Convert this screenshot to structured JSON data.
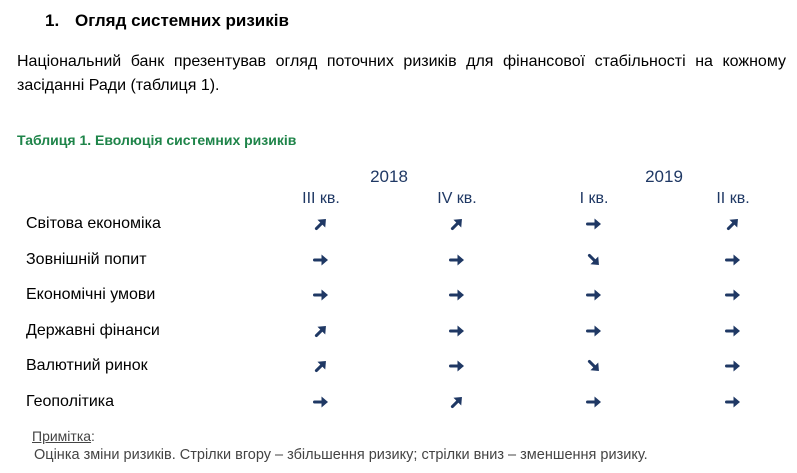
{
  "section": {
    "number": "1.",
    "title": "Огляд системних ризиків"
  },
  "paragraph": "Національний банк презентував огляд поточних ризиків для фінансової стабільності на кожному засіданні Ради (таблиця 1).",
  "table": {
    "caption": "Таблиця 1. Еволюція системних ризиків",
    "years": [
      "2018",
      "2019"
    ],
    "quarters": [
      "III кв.",
      "IV кв.",
      "I кв.",
      "II кв."
    ],
    "rows": [
      {
        "label": "Світова економіка",
        "trends": [
          "up",
          "up",
          "flat",
          "up"
        ]
      },
      {
        "label": "Зовнішній попит",
        "trends": [
          "flat",
          "flat",
          "down",
          "flat"
        ]
      },
      {
        "label": "Економічні умови",
        "trends": [
          "flat",
          "flat",
          "flat",
          "flat"
        ]
      },
      {
        "label": "Державні фінанси",
        "trends": [
          "up",
          "flat",
          "flat",
          "flat"
        ]
      },
      {
        "label": "Валютний ринок",
        "trends": [
          "up",
          "flat",
          "down",
          "flat"
        ]
      },
      {
        "label": "Геополітика",
        "trends": [
          "flat",
          "up",
          "flat",
          "flat"
        ]
      }
    ],
    "arrow_color": "#1f3864"
  },
  "note": {
    "label": "Примітка",
    "suffix": ":",
    "text": "Оцінка зміни ризиків. Стрілки вгору – збільшення ризику; стрілки вниз – зменшення ризику."
  }
}
